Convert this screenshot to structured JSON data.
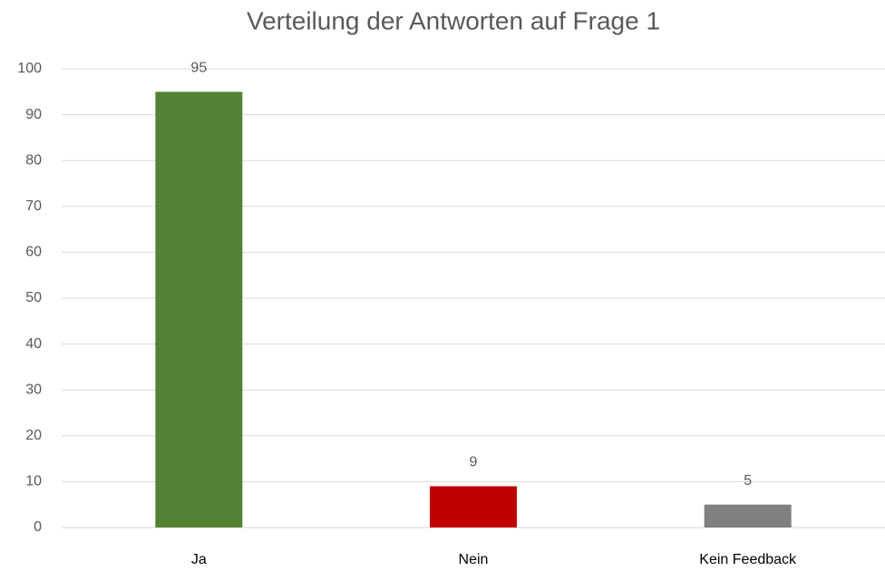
{
  "chart_data": {
    "type": "bar",
    "title": "Verteilung der Antworten auf Frage 1",
    "categories": [
      "Ja",
      "Nein",
      "Kein Feedback"
    ],
    "values": [
      95,
      9,
      5
    ],
    "colors": [
      "#548235",
      "#c00000",
      "#808080"
    ],
    "ylim": [
      0,
      100
    ],
    "yticks": [
      0,
      10,
      20,
      30,
      40,
      50,
      60,
      70,
      80,
      90,
      100
    ],
    "grid": true
  }
}
